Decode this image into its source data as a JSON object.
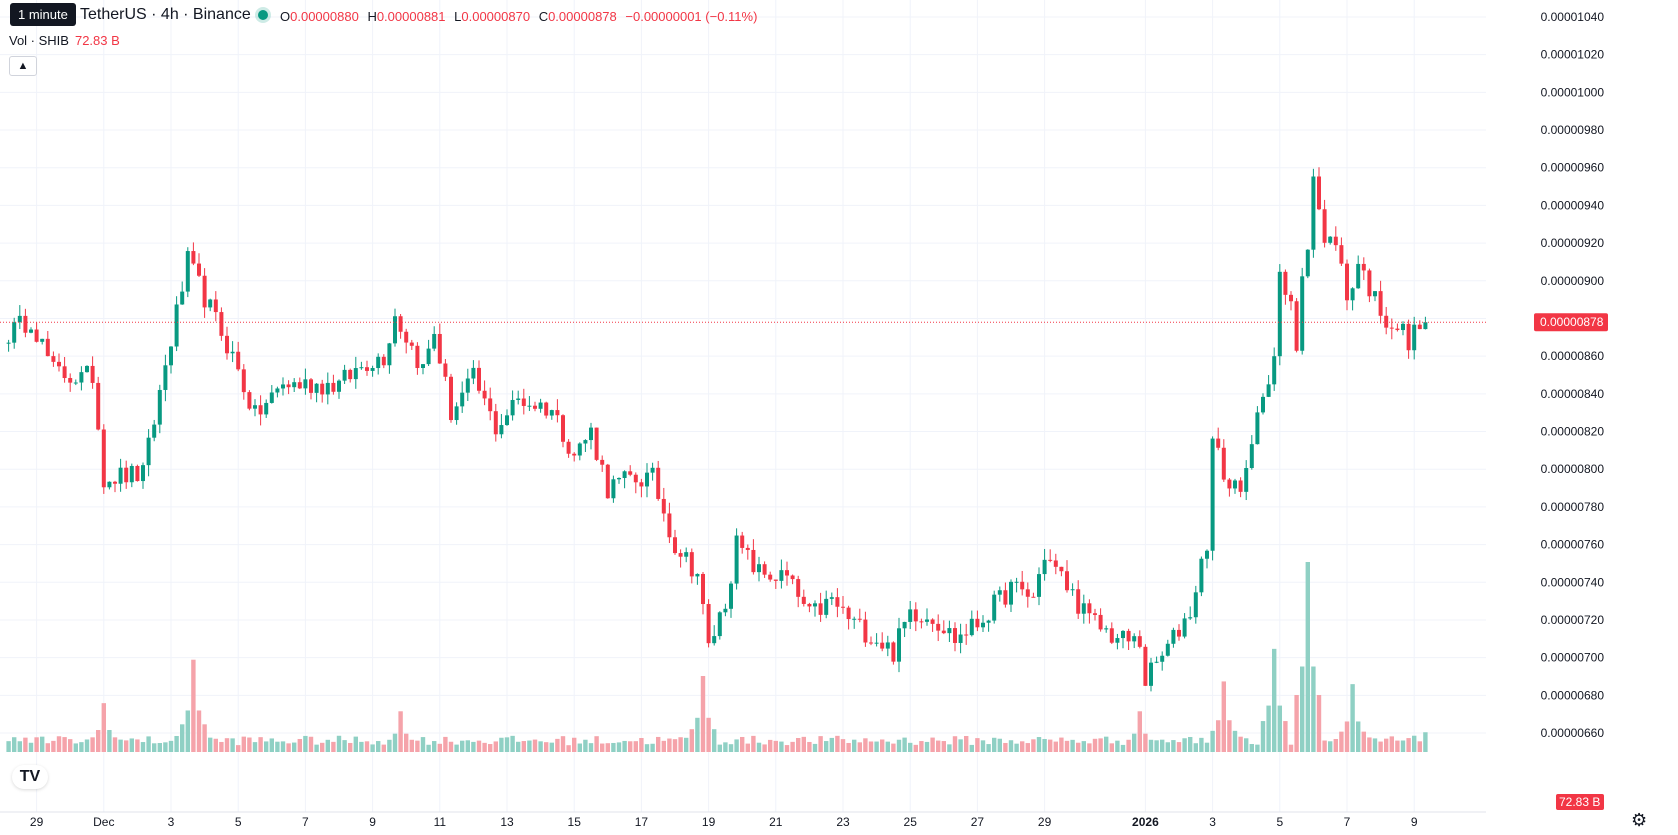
{
  "header": {
    "interval_tooltip": "1 minute",
    "symbol": "TetherUS · 4h · Binance",
    "open_label": "O",
    "open": "0.00000880",
    "high_label": "H",
    "high": "0.00000881",
    "low_label": "L",
    "low": "0.00000870",
    "close_label": "C",
    "close": "0.00000878",
    "change": "−0.00000001 (−0.11%)"
  },
  "volume_legend": {
    "label": "Vol · SHIB",
    "value": "72.83 B"
  },
  "colors": {
    "up": "#089981",
    "down": "#f23645",
    "up_vol": "#8fd0c4",
    "down_vol": "#f5a3aa",
    "grid": "#f0f3fa"
  },
  "price_axis": {
    "ticks": [
      "0.00001040",
      "0.00001020",
      "0.00001000",
      "0.00000980",
      "0.00000960",
      "0.00000940",
      "0.00000920",
      "0.00000900",
      "0.00000880",
      "0.00000860",
      "0.00000840",
      "0.00000820",
      "0.00000800",
      "0.00000780",
      "0.00000760",
      "0.00000740",
      "0.00000720",
      "0.00000700",
      "0.00000680",
      "0.00000660"
    ],
    "last_price": "0.00000878",
    "last_volume": "72.83 B"
  },
  "time_axis": {
    "labels": [
      "29",
      "Dec",
      "3",
      "5",
      "7",
      "9",
      "11",
      "13",
      "15",
      "17",
      "19",
      "21",
      "23",
      "25",
      "27",
      "29",
      "2026",
      "3",
      "5",
      "7",
      "9"
    ]
  },
  "chart_data": {
    "type": "candlestick",
    "timeframe": "4h",
    "ylim": [
      6.6e-06,
      1.04e-05
    ],
    "anchors": [
      [
        "2025-11-28 04:00",
        8.72e-06
      ],
      [
        "2025-11-28 20:00",
        8.8e-06
      ],
      [
        "2025-11-29 12:00",
        8.52e-06
      ],
      [
        "2025-11-30 08:00",
        8.48e-06
      ],
      [
        "2025-11-30 16:00",
        8.5e-06
      ],
      [
        "2025-12-01 00:00",
        7.96e-06
      ],
      [
        "2025-12-02 04:00",
        7.97e-06
      ],
      [
        "2025-12-02 20:00",
        8.55e-06
      ],
      [
        "2025-12-03 12:00",
        9.1e-06
      ],
      [
        "2025-12-04 04:00",
        8.85e-06
      ],
      [
        "2025-12-04 20:00",
        8.6e-06
      ],
      [
        "2025-12-05 12:00",
        8.28e-06
      ],
      [
        "2025-12-06 08:00",
        8.45e-06
      ],
      [
        "2025-12-07 04:00",
        8.45e-06
      ],
      [
        "2025-12-08 00:00",
        8.45e-06
      ],
      [
        "2025-12-08 20:00",
        8.57e-06
      ],
      [
        "2025-12-09 08:00",
        8.6e-06
      ],
      [
        "2025-12-09 16:00",
        8.82e-06
      ],
      [
        "2025-12-10 12:00",
        8.53e-06
      ],
      [
        "2025-12-10 20:00",
        8.73e-06
      ],
      [
        "2025-12-11 08:00",
        8.3e-06
      ],
      [
        "2025-12-12 00:00",
        8.48e-06
      ],
      [
        "2025-12-12 16:00",
        8.22e-06
      ],
      [
        "2025-12-13 08:00",
        8.37e-06
      ],
      [
        "2025-12-14 08:00",
        8.32e-06
      ],
      [
        "2025-12-15 00:00",
        8.08e-06
      ],
      [
        "2025-12-15 12:00",
        8.2e-06
      ],
      [
        "2025-12-16 00:00",
        7.9e-06
      ],
      [
        "2025-12-16 16:00",
        7.95e-06
      ],
      [
        "2025-12-17 08:00",
        7.95e-06
      ],
      [
        "2025-12-18 00:00",
        7.6e-06
      ],
      [
        "2025-12-18 16:00",
        7.45e-06
      ],
      [
        "2025-12-19 00:00",
        7.05e-06
      ],
      [
        "2025-12-19 12:00",
        7.3e-06
      ],
      [
        "2025-12-19 20:00",
        7.6e-06
      ],
      [
        "2025-12-20 12:00",
        7.45e-06
      ],
      [
        "2025-12-21 08:00",
        7.42e-06
      ],
      [
        "2025-12-22 00:00",
        7.22e-06
      ],
      [
        "2025-12-22 16:00",
        7.3e-06
      ],
      [
        "2025-12-23 08:00",
        7.18e-06
      ],
      [
        "2025-12-24 00:00",
        7.1e-06
      ],
      [
        "2025-12-24 12:00",
        7.03e-06
      ],
      [
        "2025-12-25 00:00",
        7.25e-06
      ],
      [
        "2025-12-25 16:00",
        7.22e-06
      ],
      [
        "2025-12-26 08:00",
        7.1e-06
      ],
      [
        "2025-12-27 00:00",
        7.18e-06
      ],
      [
        "2025-12-28 00:00",
        7.37e-06
      ],
      [
        "2025-12-28 16:00",
        7.32e-06
      ],
      [
        "2025-12-29 00:00",
        7.55e-06
      ],
      [
        "2025-12-29 16:00",
        7.38e-06
      ],
      [
        "2025-12-30 08:00",
        7.2e-06
      ],
      [
        "2025-12-31 04:00",
        7.1e-06
      ],
      [
        "2025-12-31 20:00",
        7.08e-06
      ],
      [
        "2026-01-01 00:00",
        6.88e-06
      ],
      [
        "2026-01-01 16:00",
        7.05e-06
      ],
      [
        "2026-01-02 08:00",
        7.25e-06
      ],
      [
        "2026-01-02 20:00",
        7.62e-06
      ],
      [
        "2026-01-03 00:00",
        8.15e-06
      ],
      [
        "2026-01-03 12:00",
        7.9e-06
      ],
      [
        "2026-01-04 00:00",
        7.95e-06
      ],
      [
        "2026-01-04 12:00",
        8.42e-06
      ],
      [
        "2026-01-04 20:00",
        8.6e-06
      ],
      [
        "2026-01-05 00:00",
        9e-06
      ],
      [
        "2026-01-05 08:00",
        8.85e-06
      ],
      [
        "2026-01-05 12:00",
        8.65e-06
      ],
      [
        "2026-01-05 16:00",
        9.05e-06
      ],
      [
        "2026-01-05 20:00",
        9.22e-06
      ],
      [
        "2026-01-06 00:00",
        9.57e-06
      ],
      [
        "2026-01-06 08:00",
        9.18e-06
      ],
      [
        "2026-01-06 16:00",
        9.23e-06
      ],
      [
        "2026-01-07 00:00",
        8.9e-06
      ],
      [
        "2026-01-07 08:00",
        9.1e-06
      ],
      [
        "2026-01-07 20:00",
        8.9e-06
      ],
      [
        "2026-01-08 04:00",
        8.8e-06
      ],
      [
        "2026-01-08 16:00",
        8.73e-06
      ],
      [
        "2026-01-08 20:00",
        8.65e-06
      ],
      [
        "2026-01-09 04:00",
        8.8e-06
      ],
      [
        "2026-01-09 08:00",
        8.78e-06
      ]
    ],
    "volume_max_b": 700,
    "volume_peaks": [
      [
        "2025-12-01 00:00",
        180
      ],
      [
        "2025-12-03 16:00",
        340
      ],
      [
        "2025-12-09 20:00",
        150
      ],
      [
        "2025-12-18 20:00",
        280
      ],
      [
        "2025-12-31 20:00",
        150
      ],
      [
        "2026-01-03 08:00",
        260
      ],
      [
        "2026-01-04 20:00",
        380
      ],
      [
        "2026-01-05 20:00",
        700
      ],
      [
        "2026-01-07 04:00",
        250
      ]
    ],
    "last_volume_b": 72.83
  }
}
